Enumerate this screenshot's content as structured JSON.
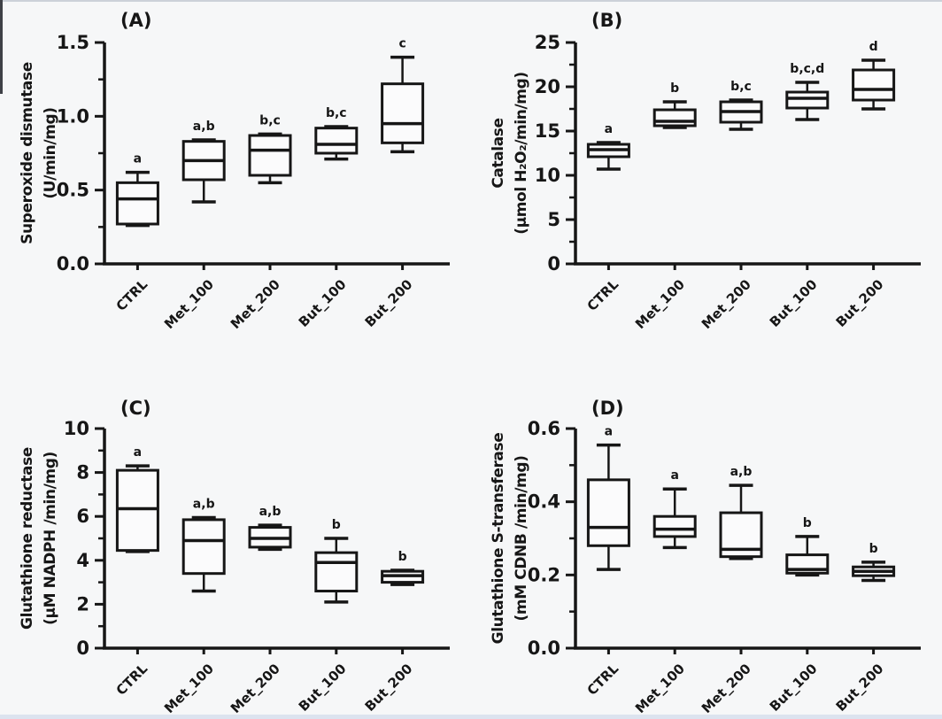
{
  "figure": {
    "background": "#f6f7f8",
    "ink": "#161616",
    "box_fill": "#fbfbfc",
    "top_border_color": "#aab2bf",
    "bottom_border_color": "#dce3ef",
    "left_corner_mark_color": "#3f4147"
  },
  "chart_data": [
    {
      "type": "box",
      "panel_label": "(A)",
      "ylabel_line1": "Superoxide dismutase",
      "ylabel_line2": "(U/min/mg)",
      "ylim": [
        0,
        1.5
      ],
      "yticks": [
        "0.0",
        "0.5",
        "1.0",
        "1.5"
      ],
      "ytick_values": [
        0,
        0.5,
        1.0,
        1.5
      ],
      "minor_ticks": true,
      "categories": [
        "CTRL",
        "Met_100",
        "Met_200",
        "But_100",
        "But_200"
      ],
      "boxes": [
        {
          "category": "CTRL",
          "whisker_low": 0.26,
          "q1": 0.27,
          "median": 0.44,
          "q3": 0.55,
          "whisker_high": 0.62,
          "sig_letters": "a"
        },
        {
          "category": "Met_100",
          "whisker_low": 0.42,
          "q1": 0.57,
          "median": 0.7,
          "q3": 0.83,
          "whisker_high": 0.84,
          "sig_letters": "a,b"
        },
        {
          "category": "Met_200",
          "whisker_low": 0.55,
          "q1": 0.6,
          "median": 0.77,
          "q3": 0.87,
          "whisker_high": 0.88,
          "sig_letters": "b,c"
        },
        {
          "category": "But_100",
          "whisker_low": 0.71,
          "q1": 0.75,
          "median": 0.81,
          "q3": 0.92,
          "whisker_high": 0.93,
          "sig_letters": "b,c"
        },
        {
          "category": "But_200",
          "whisker_low": 0.76,
          "q1": 0.82,
          "median": 0.95,
          "q3": 1.22,
          "whisker_high": 1.4,
          "sig_letters": "c"
        }
      ]
    },
    {
      "type": "box",
      "panel_label": "(B)",
      "ylabel_line1": "Catalase",
      "ylabel_line2": "(µmol H₂O₂/min/mg)",
      "ylim": [
        0,
        25
      ],
      "yticks": [
        "0",
        "5",
        "10",
        "15",
        "20",
        "25"
      ],
      "ytick_values": [
        0,
        5,
        10,
        15,
        20,
        25
      ],
      "minor_ticks": true,
      "categories": [
        "CTRL",
        "Met_100",
        "Met_200",
        "But_100",
        "But_200"
      ],
      "boxes": [
        {
          "category": "CTRL",
          "whisker_low": 10.7,
          "q1": 12.1,
          "median": 12.9,
          "q3": 13.5,
          "whisker_high": 13.7,
          "sig_letters": "a"
        },
        {
          "category": "Met_100",
          "whisker_low": 15.4,
          "q1": 15.6,
          "median": 16.1,
          "q3": 17.4,
          "whisker_high": 18.3,
          "sig_letters": "b"
        },
        {
          "category": "Met_200",
          "whisker_low": 15.2,
          "q1": 16.0,
          "median": 17.2,
          "q3": 18.3,
          "whisker_high": 18.5,
          "sig_letters": "b,c"
        },
        {
          "category": "But_100",
          "whisker_low": 16.3,
          "q1": 17.6,
          "median": 18.7,
          "q3": 19.4,
          "whisker_high": 20.5,
          "sig_letters": "b,c,d"
        },
        {
          "category": "But_200",
          "whisker_low": 17.5,
          "q1": 18.5,
          "median": 19.7,
          "q3": 21.9,
          "whisker_high": 23.0,
          "sig_letters": "d"
        }
      ]
    },
    {
      "type": "box",
      "panel_label": "(C)",
      "ylabel_line1": "Glutathione reductase",
      "ylabel_line2": "(µM NADPH /min/mg)",
      "ylim": [
        0,
        10
      ],
      "yticks": [
        "0",
        "2",
        "4",
        "6",
        "8",
        "10"
      ],
      "ytick_values": [
        0,
        2,
        4,
        6,
        8,
        10
      ],
      "minor_ticks": true,
      "categories": [
        "CTRL",
        "Met_100",
        "Met_200",
        "But_100",
        "But_200"
      ],
      "boxes": [
        {
          "category": "CTRL",
          "whisker_low": 4.4,
          "q1": 4.45,
          "median": 6.35,
          "q3": 8.1,
          "whisker_high": 8.3,
          "sig_letters": "a"
        },
        {
          "category": "Met_100",
          "whisker_low": 2.6,
          "q1": 3.4,
          "median": 4.9,
          "q3": 5.85,
          "whisker_high": 5.95,
          "sig_letters": "a,b"
        },
        {
          "category": "Met_200",
          "whisker_low": 4.5,
          "q1": 4.6,
          "median": 5.0,
          "q3": 5.5,
          "whisker_high": 5.6,
          "sig_letters": "a,b"
        },
        {
          "category": "But_100",
          "whisker_low": 2.1,
          "q1": 2.6,
          "median": 3.9,
          "q3": 4.35,
          "whisker_high": 5.0,
          "sig_letters": "b"
        },
        {
          "category": "But_200",
          "whisker_low": 2.9,
          "q1": 3.0,
          "median": 3.3,
          "q3": 3.5,
          "whisker_high": 3.55,
          "sig_letters": "b"
        }
      ]
    },
    {
      "type": "box",
      "panel_label": "(D)",
      "ylabel_line1": "Glutathione S-transferase",
      "ylabel_line2": "(mM CDNB /min/mg)",
      "ylim": [
        0,
        0.6
      ],
      "yticks": [
        "0.0",
        "0.2",
        "0.4",
        "0.6"
      ],
      "ytick_values": [
        0,
        0.2,
        0.4,
        0.6
      ],
      "minor_ticks": true,
      "categories": [
        "CTRL",
        "Met_100",
        "Met_200",
        "But_100",
        "But_200"
      ],
      "boxes": [
        {
          "category": "CTRL",
          "whisker_low": 0.215,
          "q1": 0.28,
          "median": 0.33,
          "q3": 0.46,
          "whisker_high": 0.555,
          "sig_letters": "a"
        },
        {
          "category": "Met_100",
          "whisker_low": 0.275,
          "q1": 0.305,
          "median": 0.325,
          "q3": 0.36,
          "whisker_high": 0.435,
          "sig_letters": "a"
        },
        {
          "category": "Met_200",
          "whisker_low": 0.245,
          "q1": 0.25,
          "median": 0.27,
          "q3": 0.37,
          "whisker_high": 0.445,
          "sig_letters": "a,b"
        },
        {
          "category": "But_100",
          "whisker_low": 0.2,
          "q1": 0.205,
          "median": 0.215,
          "q3": 0.255,
          "whisker_high": 0.305,
          "sig_letters": "b"
        },
        {
          "category": "But_200",
          "whisker_low": 0.185,
          "q1": 0.198,
          "median": 0.21,
          "q3": 0.222,
          "whisker_high": 0.235,
          "sig_letters": "b"
        }
      ]
    }
  ]
}
